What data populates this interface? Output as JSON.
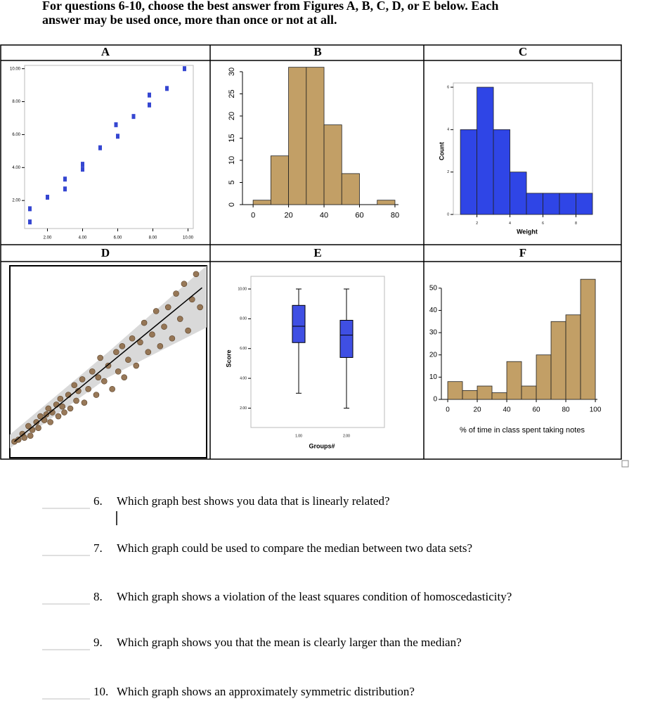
{
  "instructions": [
    "For questions 6-10, choose the best answer from Figures A, B, C, D, or E below.  Each",
    "answer may be used once, more than once or not at all."
  ],
  "chart_data": [
    {
      "type": "scatter",
      "title": "A",
      "x": [
        1.0,
        1.0,
        2.0,
        3.0,
        3.0,
        4.0,
        4.0,
        5.0,
        5.9,
        6.0,
        6.9,
        7.8,
        7.8,
        8.8,
        9.8
      ],
      "values": [
        1.5,
        0.7,
        2.2,
        3.3,
        2.7,
        4.2,
        3.9,
        5.2,
        6.6,
        5.9,
        7.1,
        8.4,
        7.8,
        8.8,
        10.0
      ],
      "color": "#3546d1",
      "xlim": [
        0.7,
        10.3
      ],
      "ylim": [
        0.3,
        10.2
      ],
      "xticks": [
        {
          "value": 2,
          "label": "2.00"
        },
        {
          "value": 4,
          "label": "4.00"
        },
        {
          "value": 6,
          "label": "6.00"
        },
        {
          "value": 8,
          "label": "8.00"
        },
        {
          "value": 10,
          "label": "10.00"
        }
      ],
      "yticks": [
        {
          "value": 2,
          "label": "2.00"
        },
        {
          "value": 4,
          "label": "4.00"
        },
        {
          "value": 6,
          "label": "6.00"
        },
        {
          "value": 8,
          "label": "8.00"
        },
        {
          "value": 10,
          "label": "10.00"
        }
      ]
    },
    {
      "type": "histogram",
      "title": "B",
      "bins": [
        0,
        10,
        20,
        30,
        40,
        50,
        60,
        70,
        80
      ],
      "values": [
        1,
        11,
        31,
        31,
        18,
        7,
        0,
        1
      ],
      "color": "#c29f66",
      "xlim": [
        -6,
        82
      ],
      "ylim": [
        0,
        31.9
      ],
      "xticks": [
        0,
        20,
        40,
        60,
        80
      ],
      "yticks": [
        0,
        5,
        10,
        15,
        20,
        25,
        30
      ]
    },
    {
      "type": "histogram",
      "title": "C",
      "xlabel": "Weight",
      "ylabel": "Count",
      "bins": [
        1,
        2,
        3,
        4,
        5,
        6,
        7,
        8,
        9
      ],
      "values": [
        4,
        6,
        4,
        2,
        1,
        1,
        1,
        1
      ],
      "color": "#2f45e6",
      "xlim": [
        0.57,
        9
      ],
      "ylim": [
        0,
        6.2
      ],
      "xticks": [
        2,
        4,
        6,
        8
      ],
      "yticks": [
        0,
        2,
        4,
        6
      ]
    },
    {
      "type": "scatter",
      "title": "D",
      "x": [
        3,
        5,
        7,
        8,
        10,
        11,
        12,
        14,
        15,
        16,
        18,
        19,
        20,
        21,
        22,
        24,
        25,
        26,
        27,
        28,
        30,
        31,
        33,
        34,
        35,
        37,
        38,
        40,
        42,
        44,
        45,
        46,
        48,
        50,
        52,
        54,
        55,
        57,
        58,
        60,
        62,
        64,
        66,
        68,
        70,
        72,
        74,
        76,
        78,
        80,
        82,
        84,
        86,
        88,
        90,
        92,
        94,
        96
      ],
      "values": [
        9,
        10,
        13,
        11,
        17,
        12,
        15,
        19,
        16,
        22,
        20,
        23,
        26,
        19,
        24,
        28,
        22,
        31,
        27,
        24,
        33,
        26,
        38,
        30,
        35,
        41,
        29,
        36,
        45,
        33,
        42,
        52,
        40,
        48,
        36,
        55,
        45,
        58,
        42,
        51,
        62,
        48,
        60,
        70,
        55,
        64,
        76,
        58,
        68,
        78,
        62,
        85,
        72,
        90,
        66,
        82,
        95,
        78
      ],
      "color": "#8d6a47",
      "xlim": [
        0,
        100
      ],
      "ylim": [
        0,
        100
      ],
      "fit": {
        "x": [
          3,
          97
        ],
        "values": [
          9,
          88
        ],
        "color": "#000000"
      },
      "band": {
        "x": [
          0,
          50,
          100
        ],
        "upper": [
          12,
          55,
          100
        ],
        "lower": [
          5,
          42,
          68
        ],
        "color": "#d9d9d9"
      }
    },
    {
      "type": "box",
      "title": "E",
      "xlabel": "Groups#",
      "ylabel": "Score",
      "categories": [
        "1.00",
        "2.00"
      ],
      "boxes": [
        {
          "min": 3,
          "q1": 6.4,
          "median": 7.5,
          "q3": 8.9,
          "max": 10
        },
        {
          "min": 2,
          "q1": 5.4,
          "median": 6.9,
          "q3": 7.9,
          "max": 10
        }
      ],
      "color": "#3f4fe3",
      "ylim": [
        0.7,
        10.85
      ],
      "yticks": [
        {
          "value": 2,
          "label": "2.00"
        },
        {
          "value": 4,
          "label": "4.00"
        },
        {
          "value": 6,
          "label": "6.00"
        },
        {
          "value": 8,
          "label": "8.00"
        },
        {
          "value": 10,
          "label": "10.00"
        }
      ]
    },
    {
      "type": "histogram",
      "title": "F",
      "xlabel": "% of time in class spent taking notes",
      "bins": [
        0,
        10,
        20,
        30,
        40,
        50,
        60,
        70,
        80,
        90,
        100
      ],
      "values": [
        8,
        4,
        6,
        3,
        17,
        6,
        20,
        35,
        38,
        54
      ],
      "color": "#c29f66",
      "xlim": [
        -4.3,
        101.4
      ],
      "ylim": [
        0,
        55
      ],
      "xticks": [
        0,
        20,
        40,
        60,
        80,
        100
      ],
      "yticks": [
        0,
        10,
        20,
        30,
        40,
        50
      ]
    }
  ],
  "questions": [
    {
      "number": "6.",
      "text": "Which graph best shows you data that is linearly related?"
    },
    {
      "number": "7.",
      "text": "Which graph could be used to compare the median between two data sets?"
    },
    {
      "number": "8.",
      "text": "Which graph shows a violation of the least squares condition of homoscedasticity?"
    },
    {
      "number": "9.",
      "text": "Which graph shows you that the mean is clearly larger than the median?"
    },
    {
      "number": "10.",
      "text": "Which graph shows an approximately symmetric distribution?"
    }
  ]
}
